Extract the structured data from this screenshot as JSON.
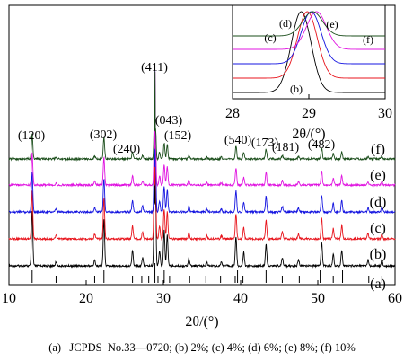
{
  "chart_data": [
    {
      "type": "line",
      "xlabel": "2θ/(°)",
      "xlim": [
        10,
        60
      ],
      "xticks": [
        10,
        20,
        30,
        40,
        50,
        60
      ],
      "series": [
        {
          "name": "(a)",
          "color": "#000000",
          "kind": "reference-sticks"
        },
        {
          "name": "(b)",
          "color": "#000000"
        },
        {
          "name": "(c)",
          "color": "#e8141c"
        },
        {
          "name": "(d)",
          "color": "#1414e0"
        },
        {
          "name": "(e)",
          "color": "#e014e0"
        },
        {
          "name": "(f)",
          "color": "#1a4d1a"
        }
      ],
      "reference_peaks_2theta": [
        13.0,
        16.1,
        21.1,
        22.3,
        26.0,
        27.2,
        28.1,
        28.9,
        29.3,
        30.1,
        30.8,
        33.4,
        35.5,
        37.4,
        39.3,
        39.6,
        40.3,
        43.3,
        45.4,
        47.6,
        50.3,
        52.0,
        53.2,
        56.6,
        58.3
      ],
      "peaks": [
        {
          "two_theta": 13.0,
          "height": 0.28
        },
        {
          "two_theta": 16.1,
          "height": 0.02
        },
        {
          "two_theta": 21.1,
          "height": 0.03
        },
        {
          "two_theta": 22.3,
          "height": 0.24
        },
        {
          "two_theta": 26.0,
          "height": 0.08
        },
        {
          "two_theta": 27.3,
          "height": 0.04
        },
        {
          "two_theta": 28.9,
          "height": 1.0
        },
        {
          "two_theta": 29.5,
          "height": 0.08
        },
        {
          "two_theta": 30.1,
          "height": 0.18
        },
        {
          "two_theta": 30.5,
          "height": 0.16
        },
        {
          "two_theta": 33.3,
          "height": 0.04
        },
        {
          "two_theta": 35.6,
          "height": 0.02
        },
        {
          "two_theta": 37.5,
          "height": 0.02
        },
        {
          "two_theta": 39.4,
          "height": 0.15
        },
        {
          "two_theta": 40.4,
          "height": 0.07
        },
        {
          "two_theta": 43.3,
          "height": 0.11
        },
        {
          "two_theta": 45.4,
          "height": 0.04
        },
        {
          "two_theta": 47.5,
          "height": 0.03
        },
        {
          "two_theta": 50.5,
          "height": 0.12
        },
        {
          "two_theta": 52.0,
          "height": 0.06
        },
        {
          "two_theta": 53.1,
          "height": 0.08
        },
        {
          "two_theta": 56.5,
          "height": 0.03
        },
        {
          "two_theta": 58.3,
          "height": 0.03
        }
      ],
      "annotations": [
        "(120)",
        "(302)",
        "(240)",
        "(411)",
        "(043)",
        "(152)",
        "(540)",
        "(173)",
        "(181)",
        "(482)"
      ]
    },
    {
      "type": "line",
      "xlabel": "2θ/(°)",
      "xlim": [
        28,
        30
      ],
      "xticks": [
        28,
        29,
        30
      ],
      "series": [
        {
          "name": "(b)",
          "color": "#000000",
          "peak_2theta": 28.9
        },
        {
          "name": "(c)",
          "color": "#e8141c",
          "peak_2theta": 28.98
        },
        {
          "name": "(d)",
          "color": "#1414e0",
          "peak_2theta": 29.03
        },
        {
          "name": "(e)",
          "color": "#e014e0",
          "peak_2theta": 29.1
        },
        {
          "name": "(f)",
          "color": "#1a4d1a",
          "peak_2theta": 29.05
        }
      ]
    }
  ],
  "caption": "(a)   JCPDS  No.33—0720; (b) 2%; (c) 4%; (d) 6%; (e) 8%; (f) 10%"
}
